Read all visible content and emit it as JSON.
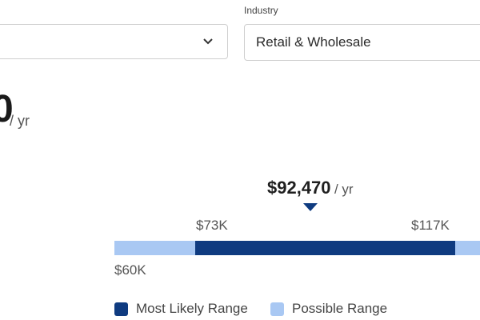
{
  "filters": {
    "industry_label": "Industry",
    "industry_value": "Retail & Wholesale"
  },
  "salary_headline": {
    "value_fragment": "0",
    "unit": "/ yr"
  },
  "range_chart": {
    "median_value": "$92,470",
    "median_unit": "/ yr",
    "likely_low_label": "$73K",
    "likely_high_label": "$117K",
    "possible_low_label": "$60K",
    "likely_low": 73000,
    "likely_high": 117000,
    "possible_low": 60000,
    "colors": {
      "likely": "#0f3b80",
      "possible": "#a9c8f3"
    }
  },
  "legend": {
    "likely_label": "Most Likely Range",
    "possible_label": "Possible Range"
  }
}
